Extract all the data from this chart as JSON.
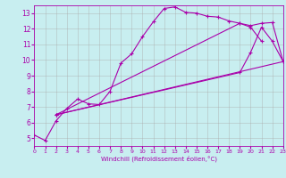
{
  "xlabel": "Windchill (Refroidissement éolien,°C)",
  "bg_color": "#c8eef0",
  "line_color": "#aa00aa",
  "grid_color": "#aaaaaa",
  "xlim": [
    0,
    23
  ],
  "ylim": [
    4.5,
    13.5
  ],
  "xticks": [
    0,
    1,
    2,
    3,
    4,
    5,
    6,
    7,
    8,
    9,
    10,
    11,
    12,
    13,
    14,
    15,
    16,
    17,
    18,
    19,
    20,
    21,
    22,
    23
  ],
  "yticks": [
    5,
    6,
    7,
    8,
    9,
    10,
    11,
    12,
    13
  ],
  "series": [
    {
      "x": [
        0,
        1,
        2,
        3,
        4,
        5,
        6,
        7,
        8,
        9,
        10,
        11,
        12,
        13,
        14,
        15,
        16,
        17,
        18,
        19,
        20,
        21
      ],
      "y": [
        5.2,
        4.85,
        6.1,
        6.9,
        7.5,
        7.2,
        7.15,
        8.0,
        9.8,
        10.4,
        11.5,
        12.45,
        13.3,
        13.4,
        13.05,
        13.0,
        12.8,
        12.75,
        12.5,
        12.35,
        12.1,
        11.2
      ]
    },
    {
      "x": [
        2,
        19,
        20,
        21,
        22,
        23
      ],
      "y": [
        6.5,
        12.35,
        12.2,
        12.35,
        12.4,
        9.9
      ]
    },
    {
      "x": [
        2,
        19,
        20,
        21,
        22,
        23
      ],
      "y": [
        6.5,
        9.2,
        10.5,
        12.1,
        11.2,
        9.9
      ]
    },
    {
      "x": [
        2,
        23
      ],
      "y": [
        6.5,
        9.9
      ]
    }
  ]
}
